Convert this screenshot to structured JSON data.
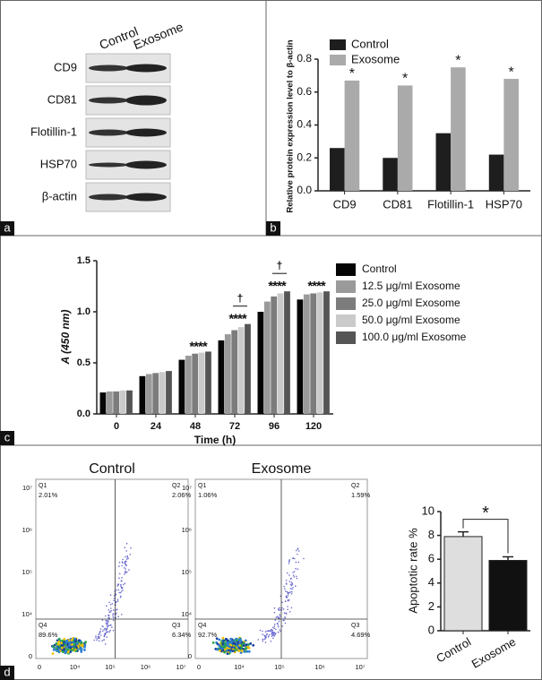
{
  "chart_data": [
    {
      "type": "bar",
      "y_label": "Relative protein expression level to β-actin",
      "categories": [
        "CD9",
        "CD81",
        "Flotillin-1",
        "HSP70"
      ],
      "series": [
        {
          "name": "Control",
          "color": "#1e1e1e",
          "values": [
            0.26,
            0.2,
            0.35,
            0.22
          ]
        },
        {
          "name": "Exosome",
          "color": "#aaaaaa",
          "values": [
            0.67,
            0.64,
            0.75,
            0.68
          ]
        }
      ],
      "ylim": [
        0,
        0.8
      ],
      "yticks": [
        {
          "value": 0,
          "label": "0.0"
        },
        0.2,
        0.4,
        0.6,
        0.8
      ],
      "legend": "top-left",
      "annotations": [
        {
          "category": "CD9",
          "text": "*"
        },
        {
          "category": "CD81",
          "text": "*"
        },
        {
          "category": "Flotillin-1",
          "text": "*"
        },
        {
          "category": "HSP70",
          "text": "*"
        }
      ]
    },
    {
      "type": "bar",
      "y_label": "A (450 nm)",
      "x_label": "Time (h)",
      "categories": [
        "0",
        "24",
        "48",
        "72",
        "96",
        "120"
      ],
      "series": [
        {
          "name": "Control",
          "color": "#050505",
          "values": [
            0.21,
            0.37,
            0.53,
            0.72,
            1.0,
            1.12
          ]
        },
        {
          "name": "12.5 μg/ml Exosome",
          "color": "#9a9a9a",
          "values": [
            0.22,
            0.39,
            0.57,
            0.78,
            1.1,
            1.17
          ]
        },
        {
          "name": "25.0 μg/ml Exosome",
          "color": "#7c7c7c",
          "values": [
            0.22,
            0.4,
            0.59,
            0.82,
            1.15,
            1.18
          ]
        },
        {
          "name": "50.0 μg/ml Exosome",
          "color": "#cacaca",
          "values": [
            0.23,
            0.41,
            0.6,
            0.85,
            1.18,
            1.19
          ]
        },
        {
          "name": "100.0 μg/ml Exosome",
          "color": "#555555",
          "values": [
            0.23,
            0.42,
            0.61,
            0.88,
            1.2,
            1.2
          ]
        }
      ],
      "ylim": [
        0,
        1.5
      ],
      "yticks": [
        {
          "value": 0,
          "label": "0.0"
        },
        {
          "value": 0.5,
          "label": "0.5"
        },
        {
          "value": 1,
          "label": "1.0"
        },
        {
          "value": 1.5,
          "label": "1.5"
        }
      ],
      "legend": "right",
      "annotations": [
        {
          "category": "48",
          "text": "****"
        },
        {
          "category": "72",
          "text": "****"
        },
        {
          "category": "96",
          "text": "****"
        },
        {
          "category": "120",
          "text": "****"
        }
      ],
      "daggers": [
        {
          "category": "72",
          "text": "†"
        },
        {
          "category": "96",
          "text": "†"
        }
      ]
    },
    {
      "type": "bar",
      "y_label": "Apoptotic rate %",
      "categories": [
        "Control",
        "Exosome"
      ],
      "values": [
        7.9,
        5.9
      ],
      "errors": [
        0.4,
        0.3
      ],
      "colors": [
        "#dedede",
        "#111111"
      ],
      "ylim": [
        0,
        10
      ],
      "yticks": [
        0,
        2,
        4,
        6,
        8,
        10
      ],
      "annotations": [
        {
          "text": "*"
        }
      ]
    }
  ],
  "panels": {
    "letters": [
      "a",
      "b",
      "c",
      "d"
    ],
    "blot": {
      "columns": [
        "Control",
        "Exosome"
      ],
      "rows": [
        "CD9",
        "CD81",
        "Flotillin-1",
        "HSP70",
        "β-actin"
      ]
    },
    "flow": [
      {
        "title": "Control",
        "quadrants": [
          {
            "name": "Q1",
            "value": "2.01%"
          },
          {
            "name": "Q2",
            "value": "2.06%"
          },
          {
            "name": "Q4",
            "value": "89.6%"
          },
          {
            "name": "Q3",
            "value": "6.34%"
          }
        ]
      },
      {
        "title": "Exosome",
        "quadrants": [
          {
            "name": "Q1",
            "value": "1.06%"
          },
          {
            "name": "Q2",
            "value": "1.59%"
          },
          {
            "name": "Q4",
            "value": "92.7%"
          },
          {
            "name": "Q3",
            "value": "4.69%"
          }
        ]
      }
    ],
    "flow_axis": {
      "y": [
        "10⁷",
        "10⁶",
        "10⁵",
        "10⁴",
        "0"
      ],
      "x": [
        "0",
        "10⁴",
        "10⁵",
        "10⁶",
        "10⁷"
      ]
    }
  }
}
